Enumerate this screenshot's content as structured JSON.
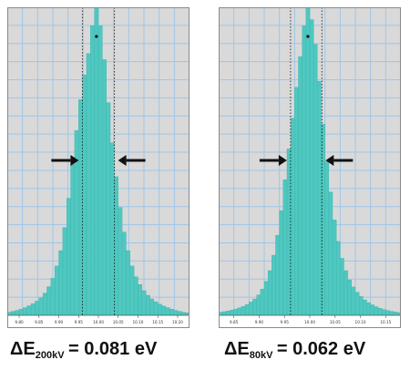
{
  "chart_data": [
    {
      "type": "bar",
      "title": "",
      "xlabel": "",
      "ylabel": "",
      "x_ticks": [
        "9.80",
        "9.85",
        "9.90",
        "9.95",
        "10.00",
        "10.05",
        "10.10",
        "10.15",
        "10.20"
      ],
      "xlim": [
        9.77,
        10.23
      ],
      "ylim": [
        0,
        1.0
      ],
      "grid": true,
      "bar_color": "#4ec8c0",
      "bin_width": 0.01,
      "bins": [
        {
          "x": 9.775,
          "y": 0.01
        },
        {
          "x": 9.785,
          "y": 0.013
        },
        {
          "x": 9.795,
          "y": 0.016
        },
        {
          "x": 9.805,
          "y": 0.02
        },
        {
          "x": 9.815,
          "y": 0.025
        },
        {
          "x": 9.825,
          "y": 0.031
        },
        {
          "x": 9.835,
          "y": 0.038
        },
        {
          "x": 9.845,
          "y": 0.046
        },
        {
          "x": 9.855,
          "y": 0.057
        },
        {
          "x": 9.865,
          "y": 0.072
        },
        {
          "x": 9.875,
          "y": 0.093
        },
        {
          "x": 9.885,
          "y": 0.12
        },
        {
          "x": 9.895,
          "y": 0.16
        },
        {
          "x": 9.905,
          "y": 0.21
        },
        {
          "x": 9.915,
          "y": 0.285
        },
        {
          "x": 9.925,
          "y": 0.38
        },
        {
          "x": 9.935,
          "y": 0.49
        },
        {
          "x": 9.945,
          "y": 0.6
        },
        {
          "x": 9.955,
          "y": 0.7
        },
        {
          "x": 9.965,
          "y": 0.78
        },
        {
          "x": 9.975,
          "y": 0.85
        },
        {
          "x": 9.985,
          "y": 0.94
        },
        {
          "x": 9.995,
          "y": 1.0
        },
        {
          "x": 10.005,
          "y": 0.94
        },
        {
          "x": 10.015,
          "y": 0.83
        },
        {
          "x": 10.025,
          "y": 0.69
        },
        {
          "x": 10.035,
          "y": 0.56
        },
        {
          "x": 10.045,
          "y": 0.45
        },
        {
          "x": 10.055,
          "y": 0.35
        },
        {
          "x": 10.065,
          "y": 0.27
        },
        {
          "x": 10.075,
          "y": 0.21
        },
        {
          "x": 10.085,
          "y": 0.16
        },
        {
          "x": 10.095,
          "y": 0.125
        },
        {
          "x": 10.105,
          "y": 0.1
        },
        {
          "x": 10.115,
          "y": 0.08
        },
        {
          "x": 10.125,
          "y": 0.065
        },
        {
          "x": 10.135,
          "y": 0.053
        },
        {
          "x": 10.145,
          "y": 0.044
        },
        {
          "x": 10.155,
          "y": 0.036
        },
        {
          "x": 10.165,
          "y": 0.03
        },
        {
          "x": 10.175,
          "y": 0.025
        },
        {
          "x": 10.185,
          "y": 0.02
        },
        {
          "x": 10.195,
          "y": 0.016
        },
        {
          "x": 10.205,
          "y": 0.013
        },
        {
          "x": 10.215,
          "y": 0.01
        },
        {
          "x": 10.225,
          "y": 0.008
        }
      ],
      "fwhm_markers": [
        9.9595,
        10.0405
      ],
      "caption": {
        "delta": "Δ",
        "symbol": "E",
        "subscript": "200kV",
        "value": "= 0.081 eV"
      }
    },
    {
      "type": "bar",
      "title": "",
      "xlabel": "",
      "ylabel": "",
      "x_ticks": [
        "9.85",
        "9.90",
        "9.95",
        "10.00",
        "10.05",
        "10.10",
        "10.15"
      ],
      "xlim": [
        9.82,
        10.18
      ],
      "ylim": [
        0,
        1.0
      ],
      "grid": true,
      "bar_color": "#4ec8c0",
      "bin_width": 0.0075,
      "bins": [
        {
          "x": 9.82375,
          "y": 0.01
        },
        {
          "x": 9.83125,
          "y": 0.012
        },
        {
          "x": 9.83875,
          "y": 0.014
        },
        {
          "x": 9.84625,
          "y": 0.017
        },
        {
          "x": 9.85375,
          "y": 0.02
        },
        {
          "x": 9.86125,
          "y": 0.024
        },
        {
          "x": 9.86875,
          "y": 0.029
        },
        {
          "x": 9.87625,
          "y": 0.035
        },
        {
          "x": 9.88375,
          "y": 0.043
        },
        {
          "x": 9.89125,
          "y": 0.053
        },
        {
          "x": 9.89875,
          "y": 0.066
        },
        {
          "x": 9.90625,
          "y": 0.085
        },
        {
          "x": 9.91375,
          "y": 0.11
        },
        {
          "x": 9.92125,
          "y": 0.145
        },
        {
          "x": 9.92875,
          "y": 0.195
        },
        {
          "x": 9.93625,
          "y": 0.26
        },
        {
          "x": 9.94375,
          "y": 0.34
        },
        {
          "x": 9.95125,
          "y": 0.44
        },
        {
          "x": 9.95875,
          "y": 0.54
        },
        {
          "x": 9.96625,
          "y": 0.64
        },
        {
          "x": 9.97375,
          "y": 0.74
        },
        {
          "x": 9.98125,
          "y": 0.84
        },
        {
          "x": 9.98875,
          "y": 0.94
        },
        {
          "x": 9.99625,
          "y": 1.0
        },
        {
          "x": 10.00375,
          "y": 0.96
        },
        {
          "x": 10.01125,
          "y": 0.88
        },
        {
          "x": 10.01875,
          "y": 0.76
        },
        {
          "x": 10.02625,
          "y": 0.62
        },
        {
          "x": 10.03375,
          "y": 0.5
        },
        {
          "x": 10.04125,
          "y": 0.4
        },
        {
          "x": 10.04875,
          "y": 0.31
        },
        {
          "x": 10.05625,
          "y": 0.24
        },
        {
          "x": 10.06375,
          "y": 0.185
        },
        {
          "x": 10.07125,
          "y": 0.145
        },
        {
          "x": 10.07875,
          "y": 0.115
        },
        {
          "x": 10.08625,
          "y": 0.092
        },
        {
          "x": 10.09375,
          "y": 0.075
        },
        {
          "x": 10.10125,
          "y": 0.061
        },
        {
          "x": 10.10875,
          "y": 0.05
        },
        {
          "x": 10.11625,
          "y": 0.041
        },
        {
          "x": 10.12375,
          "y": 0.034
        },
        {
          "x": 10.13125,
          "y": 0.028
        },
        {
          "x": 10.13875,
          "y": 0.023
        },
        {
          "x": 10.14625,
          "y": 0.019
        },
        {
          "x": 10.15375,
          "y": 0.016
        },
        {
          "x": 10.16125,
          "y": 0.013
        },
        {
          "x": 10.16875,
          "y": 0.011
        },
        {
          "x": 10.17625,
          "y": 0.009
        }
      ],
      "fwhm_markers": [
        9.962,
        10.024
      ],
      "caption": {
        "delta": "Δ",
        "symbol": "E",
        "subscript": "80kV",
        "value": "= 0.062 eV"
      }
    }
  ]
}
